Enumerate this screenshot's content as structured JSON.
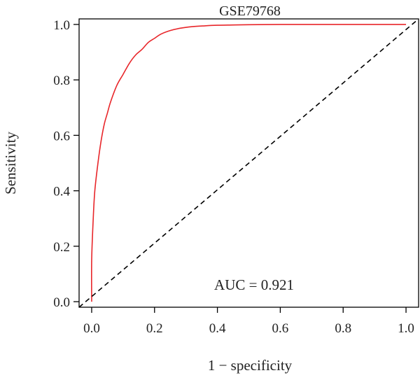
{
  "chart_data": {
    "type": "line",
    "title": "GSE79768",
    "xlabel": "1 − specificity",
    "ylabel": "Sensitivity",
    "xlim": [
      -0.04,
      1.04
    ],
    "ylim": [
      -0.02,
      1.02
    ],
    "xticks": [
      0.0,
      0.2,
      0.4,
      0.6,
      0.8,
      1.0
    ],
    "xtick_labels": [
      "0.0",
      "0.2",
      "0.4",
      "0.6",
      "0.8",
      "1.0"
    ],
    "yticks": [
      0.0,
      0.2,
      0.4,
      0.6,
      0.8,
      1.0
    ],
    "ytick_labels": [
      "0.0",
      "0.2",
      "0.4",
      "0.6",
      "0.8",
      "1.0"
    ],
    "grid": false,
    "annotation": "AUC = 0.921",
    "series": [
      {
        "color": "#e8262a",
        "style": "solid",
        "x": [
          0.0,
          0.0,
          0.005,
          0.01,
          0.02,
          0.03,
          0.04,
          0.05,
          0.06,
          0.08,
          0.1,
          0.12,
          0.14,
          0.16,
          0.18,
          0.2,
          0.22,
          0.25,
          0.28,
          0.32,
          0.36,
          0.4,
          0.45,
          0.5,
          0.6,
          0.7,
          0.8,
          0.9,
          1.0
        ],
        "y": [
          0.0,
          0.15,
          0.3,
          0.4,
          0.5,
          0.58,
          0.64,
          0.68,
          0.72,
          0.78,
          0.82,
          0.86,
          0.89,
          0.91,
          0.935,
          0.95,
          0.965,
          0.978,
          0.986,
          0.992,
          0.995,
          0.997,
          0.998,
          0.999,
          1.0,
          1.0,
          1.0,
          1.0,
          1.0
        ]
      },
      {
        "color": "#000000",
        "style": "dashed",
        "x": [
          -0.04,
          1.04
        ],
        "y": [
          -0.02,
          1.02
        ]
      }
    ]
  }
}
